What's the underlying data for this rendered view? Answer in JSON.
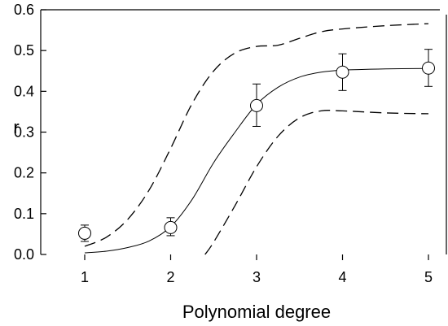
{
  "chart_data": {
    "type": "scatter",
    "xlabel": "Polynomial degree",
    "ylabel": "r",
    "xlim": [
      1,
      5
    ],
    "ylim": [
      0,
      0.6
    ],
    "x_ticks": [
      "1",
      "2",
      "3",
      "4",
      "5"
    ],
    "y_ticks": [
      "0.0",
      "0.1",
      "0.2",
      "0.3",
      "0.4",
      "0.5",
      "0.6"
    ],
    "grid": false,
    "legend": "none",
    "series": [
      {
        "kind": "points_with_error_bars",
        "marker": "open-circle",
        "x": [
          1,
          2,
          3,
          4,
          5
        ],
        "y": [
          0.052,
          0.066,
          0.365,
          0.447,
          0.457
        ],
        "error_low": [
          0.032,
          0.046,
          0.314,
          0.402,
          0.412
        ],
        "error_high": [
          0.072,
          0.09,
          0.418,
          0.492,
          0.503
        ]
      },
      {
        "kind": "fitted-curve",
        "line_style": "solid",
        "x": [
          1,
          1.25,
          1.5,
          1.75,
          2,
          2.25,
          2.5,
          2.75,
          3,
          3.25,
          3.5,
          3.75,
          4,
          4.5,
          5
        ],
        "y": [
          0.004,
          0.008,
          0.017,
          0.033,
          0.068,
          0.135,
          0.225,
          0.3,
          0.368,
          0.41,
          0.435,
          0.447,
          0.452,
          0.455,
          0.456
        ]
      },
      {
        "kind": "upper-confidence-band",
        "line_style": "dashed",
        "x": [
          1,
          1.25,
          1.5,
          1.75,
          2,
          2.25,
          2.5,
          2.75,
          3,
          3.25,
          3.5,
          3.75,
          4,
          4.5,
          5
        ],
        "y": [
          0.02,
          0.042,
          0.086,
          0.158,
          0.26,
          0.37,
          0.45,
          0.494,
          0.51,
          0.513,
          0.53,
          0.546,
          0.553,
          0.561,
          0.566
        ]
      },
      {
        "kind": "lower-confidence-band",
        "line_style": "dashed",
        "x": [
          2.4,
          2.5,
          2.75,
          3,
          3.25,
          3.5,
          3.75,
          4,
          4.5,
          5
        ],
        "y": [
          0,
          0.03,
          0.12,
          0.215,
          0.29,
          0.335,
          0.352,
          0.352,
          0.347,
          0.345
        ]
      }
    ]
  }
}
